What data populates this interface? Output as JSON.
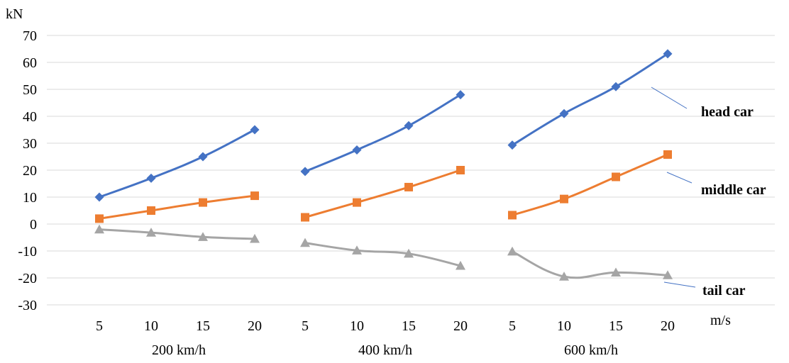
{
  "chart_data": {
    "type": "line",
    "ylabel": "kN",
    "xlabel": "m/s",
    "ylim": [
      -30,
      70
    ],
    "yticks": [
      70,
      60,
      50,
      40,
      30,
      20,
      10,
      0,
      -10,
      -20,
      -30
    ],
    "grid": true,
    "groups": [
      {
        "name": "200 km/h",
        "x": [
          "5",
          "10",
          "15",
          "20"
        ]
      },
      {
        "name": "400 km/h",
        "x": [
          "5",
          "10",
          "15",
          "20"
        ]
      },
      {
        "name": "600 km/h",
        "x": [
          "5",
          "10",
          "15",
          "20"
        ]
      }
    ],
    "series": [
      {
        "name": "head car",
        "color": "#4472C4",
        "marker": "diamond",
        "values": [
          [
            10.0,
            17.0,
            25.0,
            35.0
          ],
          [
            19.5,
            27.5,
            36.5,
            48.0
          ],
          [
            29.3,
            41.0,
            51.0,
            63.2
          ]
        ]
      },
      {
        "name": "middle car",
        "color": "#ED7D31",
        "marker": "square",
        "values": [
          [
            2.0,
            5.0,
            8.0,
            10.5
          ],
          [
            2.5,
            8.0,
            13.7,
            20.0
          ],
          [
            3.3,
            9.3,
            17.5,
            25.8
          ]
        ]
      },
      {
        "name": "tail car",
        "color": "#A5A5A5",
        "marker": "triangle",
        "values": [
          [
            -2.0,
            -3.2,
            -4.8,
            -5.5
          ],
          [
            -7.0,
            -9.8,
            -11.0,
            -15.5
          ],
          [
            -10.2,
            -19.5,
            -18.0,
            -19.0
          ]
        ]
      }
    ]
  }
}
